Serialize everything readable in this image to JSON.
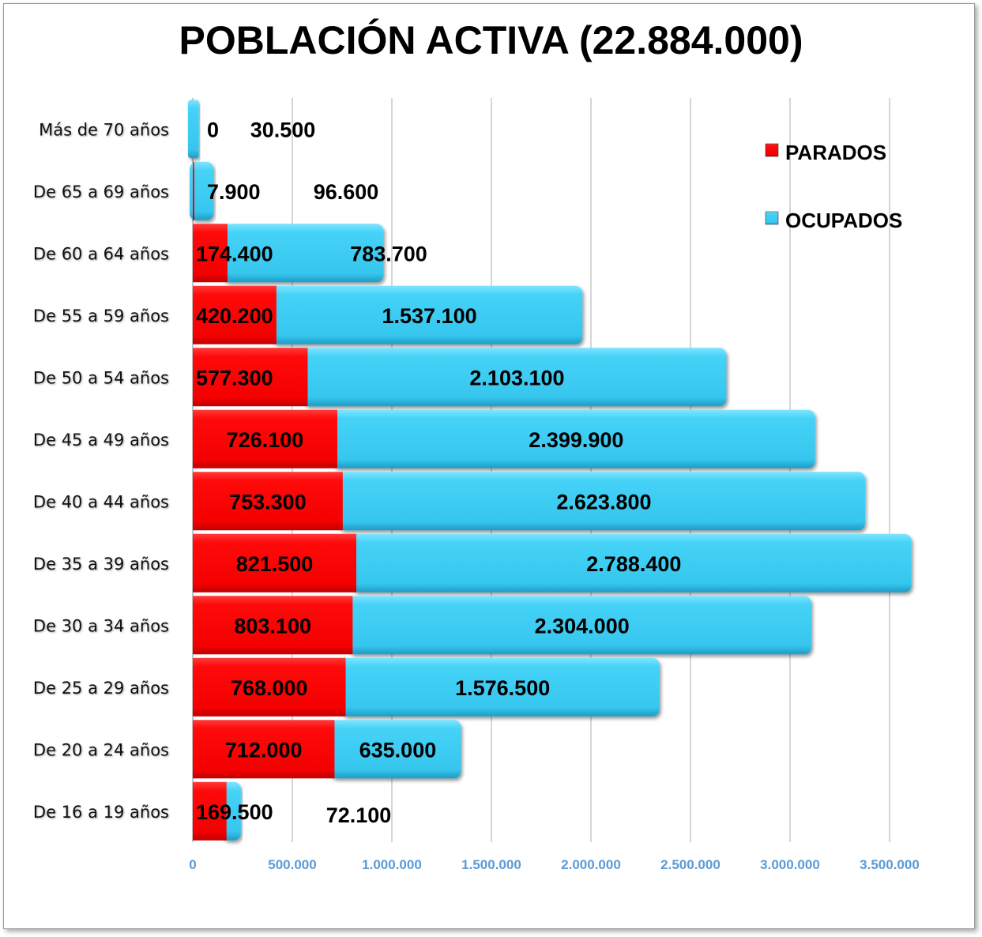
{
  "chart_data": {
    "type": "bar",
    "orientation": "horizontal",
    "stacked": true,
    "title": "POBLACIÓN ACTIVA (22.884.000)",
    "categories": [
      "Más de 70 años",
      "De 65 a 69 años",
      "De 60 a 64 años",
      "De 55 a 59 años",
      "De 50 a 54 años",
      "De 45 a 49 años",
      "De 40 a 44 años",
      "De 35 a 39 años",
      "De 30 a 34 años",
      "De 25 a 29 años",
      "De 20 a 24 años",
      "De 16 a 19 años"
    ],
    "series": [
      {
        "name": "PARADOS",
        "color": "#ff0000",
        "values": [
          0,
          7900,
          174400,
          420200,
          577300,
          726100,
          753300,
          821500,
          803100,
          768000,
          712000,
          169500
        ],
        "labels": [
          "0",
          "7.900",
          "174.400",
          "420.200",
          "577.300",
          "726.100",
          "753.300",
          "821.500",
          "803.100",
          "768.000",
          "712.000",
          "169.500"
        ]
      },
      {
        "name": "OCUPADOS",
        "color": "#40d0f5",
        "values": [
          30500,
          96600,
          783700,
          1537100,
          2103100,
          2399900,
          2623800,
          2788400,
          2304000,
          1576500,
          635000,
          72100
        ],
        "labels": [
          "30.500",
          "96.600",
          "783.700",
          "1.537.100",
          "2.103.100",
          "2.399.900",
          "2.623.800",
          "2.788.400",
          "2.304.000",
          "1.576.500",
          "635.000",
          "72.100"
        ]
      }
    ],
    "xlim": [
      0,
      3500000
    ],
    "xticks": [
      "0",
      "500.000",
      "1.000.000",
      "1.500.000",
      "2.000.000",
      "2.500.000",
      "3.000.000",
      "3.500.000"
    ],
    "grid": true,
    "legend_position": "top-right"
  }
}
